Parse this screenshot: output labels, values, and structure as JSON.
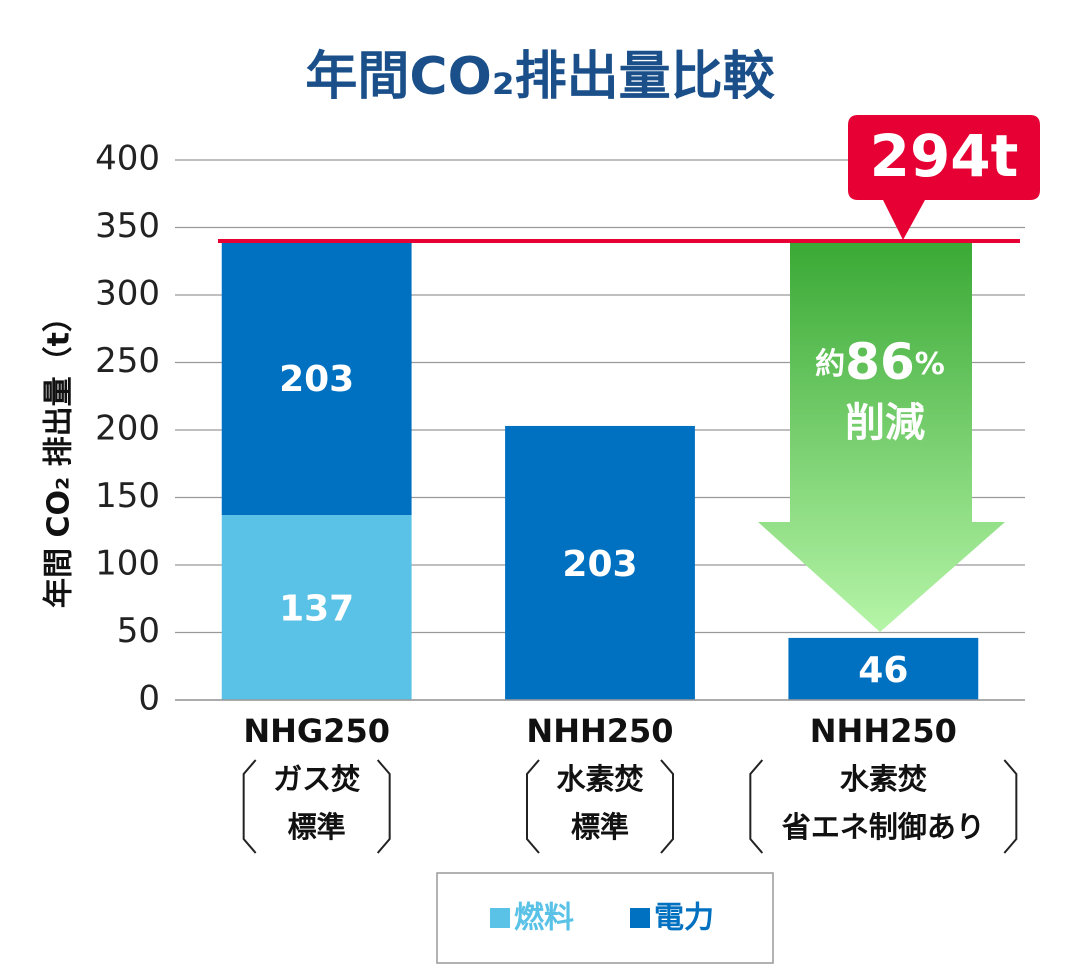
{
  "chart_data": {
    "type": "stacked_bar",
    "title": "年間CO₂排出量比較",
    "y_label": "年間 CO₂ 排出量（t）",
    "categories": [
      "NHG250",
      "NHH250",
      "NHH250"
    ],
    "subcategories": [
      [
        "ガス焚",
        "標準"
      ],
      [
        "水素焚",
        "標準"
      ],
      [
        "水素焚",
        "省エネ制御あり"
      ]
    ],
    "series": [
      {
        "name": "燃料",
        "color": "#5bc2e7",
        "values": [
          137,
          null,
          null
        ]
      },
      {
        "name": "電力",
        "color": "#0070c0",
        "values": [
          203,
          203,
          46
        ]
      }
    ],
    "ylim": [
      0,
      400
    ],
    "yticks": [
      0,
      50,
      100,
      150,
      200,
      250,
      300,
      350,
      400
    ],
    "grid": true,
    "reference_color": "#e60033",
    "annotations": {
      "reduction_amount": "294t",
      "reduction_prefix": "約",
      "reduction_value": "86",
      "reduction_unit": "%",
      "reduction_word": "削減"
    }
  }
}
